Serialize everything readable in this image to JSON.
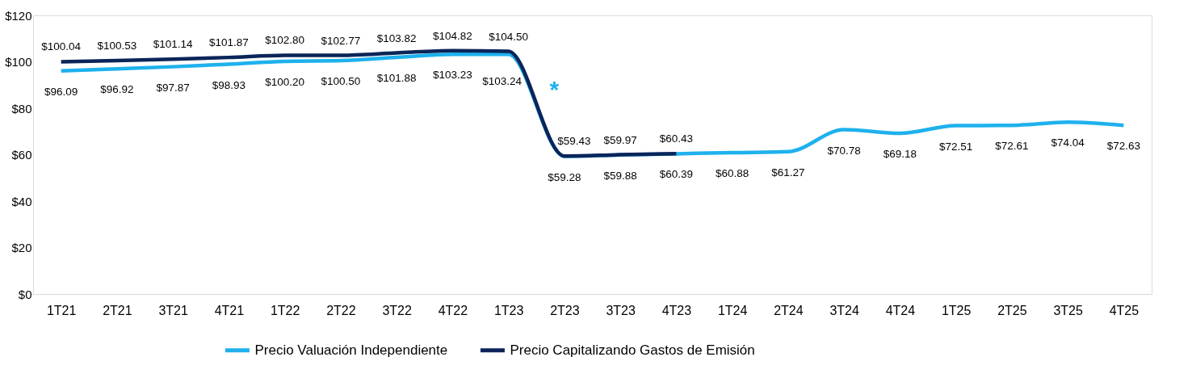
{
  "chart_data": {
    "type": "line",
    "categories": [
      "1T21",
      "2T21",
      "3T21",
      "4T21",
      "1T22",
      "2T22",
      "3T22",
      "4T22",
      "1T23",
      "2T23",
      "3T23",
      "4T23",
      "1T24",
      "2T24",
      "3T24",
      "4T24",
      "1T25",
      "2T25",
      "3T25",
      "4T25"
    ],
    "series": [
      {
        "name": "Precio Valuación Independiente",
        "color": "#1eb1ed",
        "values": [
          96.09,
          96.92,
          97.87,
          98.93,
          100.2,
          100.5,
          101.88,
          103.23,
          103.24,
          59.28,
          59.88,
          60.39,
          60.88,
          61.27,
          70.78,
          69.18,
          72.51,
          72.61,
          74.04,
          72.63
        ],
        "value_labels": [
          "$96.09",
          "$96.92",
          "$97.87",
          "$98.93",
          "$100.20",
          "$100.50",
          "$101.88",
          "$103.23",
          "$103.24",
          "$59.28",
          "$59.88",
          "$60.39",
          "$60.88",
          "$61.27",
          "$70.78",
          "$69.18",
          "$72.51",
          "$72.61",
          "$74.04",
          "$72.63"
        ]
      },
      {
        "name": "Precio Capitalizando Gastos de Emisión",
        "color": "#0b2559",
        "values": [
          100.04,
          100.53,
          101.14,
          101.87,
          102.8,
          102.77,
          103.82,
          104.82,
          104.5,
          59.43,
          59.97,
          60.43,
          null,
          null,
          null,
          null,
          null,
          null,
          null,
          null
        ],
        "value_labels": [
          "$100.04",
          "$100.53",
          "$101.14",
          "$101.87",
          "$102.80",
          "$102.77",
          "$103.82",
          "$104.82",
          "$104.50",
          "$59.43",
          "$59.97",
          "$60.43",
          null,
          null,
          null,
          null,
          null,
          null,
          null,
          null
        ]
      }
    ],
    "ylim": [
      0,
      120
    ],
    "yticks": [
      {
        "value": 0,
        "label": "$0"
      },
      {
        "value": 20,
        "label": "$20"
      },
      {
        "value": 40,
        "label": "$40"
      },
      {
        "value": 60,
        "label": "$60"
      },
      {
        "value": 80,
        "label": "$80"
      },
      {
        "value": 100,
        "label": "$100"
      },
      {
        "value": 120,
        "label": "$120"
      }
    ],
    "grid": false,
    "legend": "bottom",
    "marker": "none",
    "line_style": "solid",
    "annotations": [
      "*"
    ]
  }
}
